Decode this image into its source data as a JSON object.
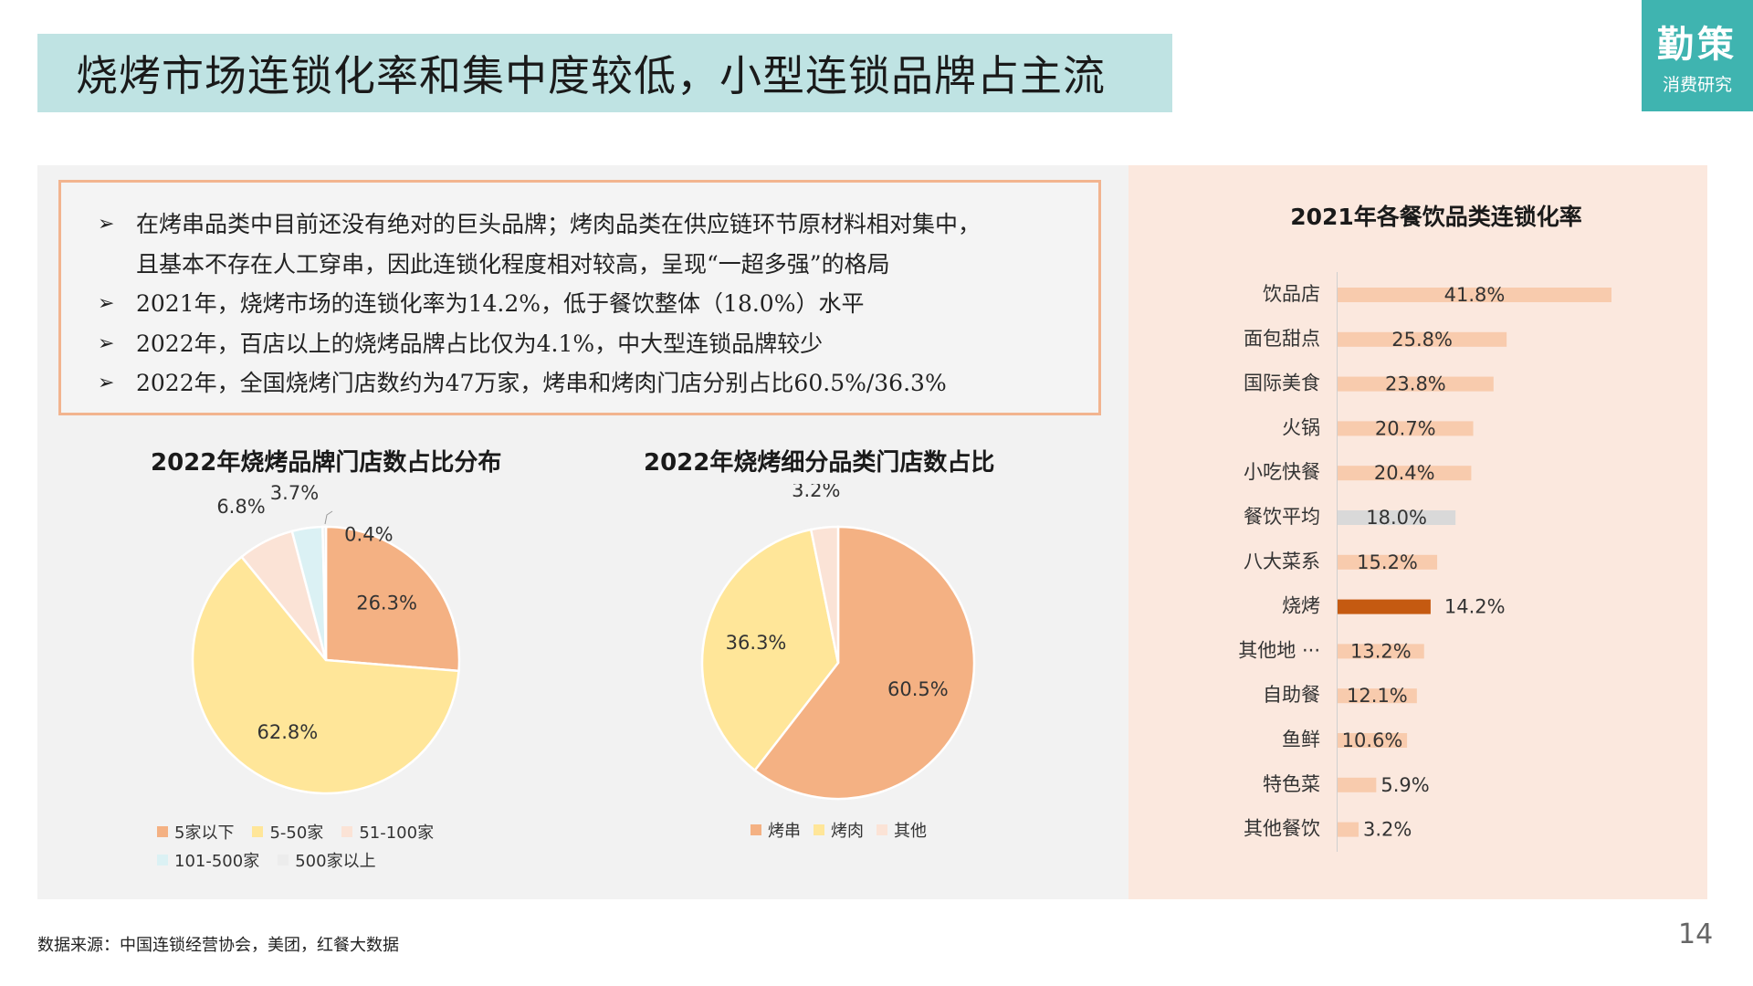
{
  "header": {
    "title": "烧烤市场连锁化率和集中度较低，小型连锁品牌占主流",
    "logo_main": "勤策",
    "logo_sub": "消费研究"
  },
  "bullets": [
    "在烤串品类中目前还没有绝对的巨头品牌；烤肉品类在供应链环节原材料相对集中，",
    "且基本不存在人工穿串，因此连锁化程度相对较高，呈现“一超多强”的格局",
    "2021年，烧烤市场的连锁化率为14.2%，低于餐饮整体（18.0%）水平",
    "2022年，百店以上的烧烤品牌占比仅为4.1%，中大型连锁品牌较少",
    "2022年，全国烧烤门店数约为47万家，烤串和烤肉门店分别占比60.5%/36.3%"
  ],
  "bullet_marker": "➢",
  "footnote": "数据来源：中国连锁经营协会，美团，红餐大数据",
  "page_number": "14",
  "chart_data": [
    {
      "type": "pie",
      "title": "2022年烧烤品牌门店数占比分布",
      "labels": [
        "5家以下",
        "5-50家",
        "51-100家",
        "101-500家",
        "500家以上"
      ],
      "values": [
        26.3,
        62.8,
        6.8,
        3.7,
        0.4
      ],
      "value_labels": [
        "26.3%",
        "62.8%",
        "6.8%",
        "3.7%",
        "0.4%"
      ],
      "colors": [
        "#f4b183",
        "#ffe699",
        "#fbe3d6",
        "#dbf1f4",
        "#ececec"
      ],
      "legend": "bottom"
    },
    {
      "type": "pie",
      "title": "2022年烧烤细分品类门店数占比",
      "labels": [
        "烤串",
        "烤肉",
        "其他"
      ],
      "values": [
        60.5,
        36.3,
        3.2
      ],
      "value_labels": [
        "60.5%",
        "36.3%",
        "3.2%"
      ],
      "colors": [
        "#f4b183",
        "#ffe699",
        "#fbe3d6"
      ],
      "legend": "bottom"
    },
    {
      "type": "bar",
      "orientation": "horizontal",
      "title": "2021年各餐饮品类连锁化率",
      "categories": [
        "饮品店",
        "面包甜点",
        "国际美食",
        "火锅",
        "小吃快餐",
        "餐饮平均",
        "八大菜系",
        "烧烤",
        "其他地 ···",
        "自助餐",
        "鱼鲜",
        "特色菜",
        "其他餐饮"
      ],
      "values": [
        41.8,
        25.8,
        23.8,
        20.7,
        20.4,
        18.0,
        15.2,
        14.2,
        13.2,
        12.1,
        10.6,
        5.9,
        3.2
      ],
      "value_labels": [
        "41.8%",
        "25.8%",
        "23.8%",
        "20.7%",
        "20.4%",
        "18.0%",
        "15.2%",
        "14.2%",
        "13.2%",
        "12.1%",
        "10.6%",
        "5.9%",
        "3.2%"
      ],
      "bar_colors": [
        "#f8cbad",
        "#f8cbad",
        "#f8cbad",
        "#f8cbad",
        "#f8cbad",
        "#d9d9d9",
        "#f8cbad",
        "#c55a11",
        "#f8cbad",
        "#f8cbad",
        "#f8cbad",
        "#f8cbad",
        "#f8cbad"
      ],
      "xlim": [
        0,
        42
      ]
    }
  ]
}
